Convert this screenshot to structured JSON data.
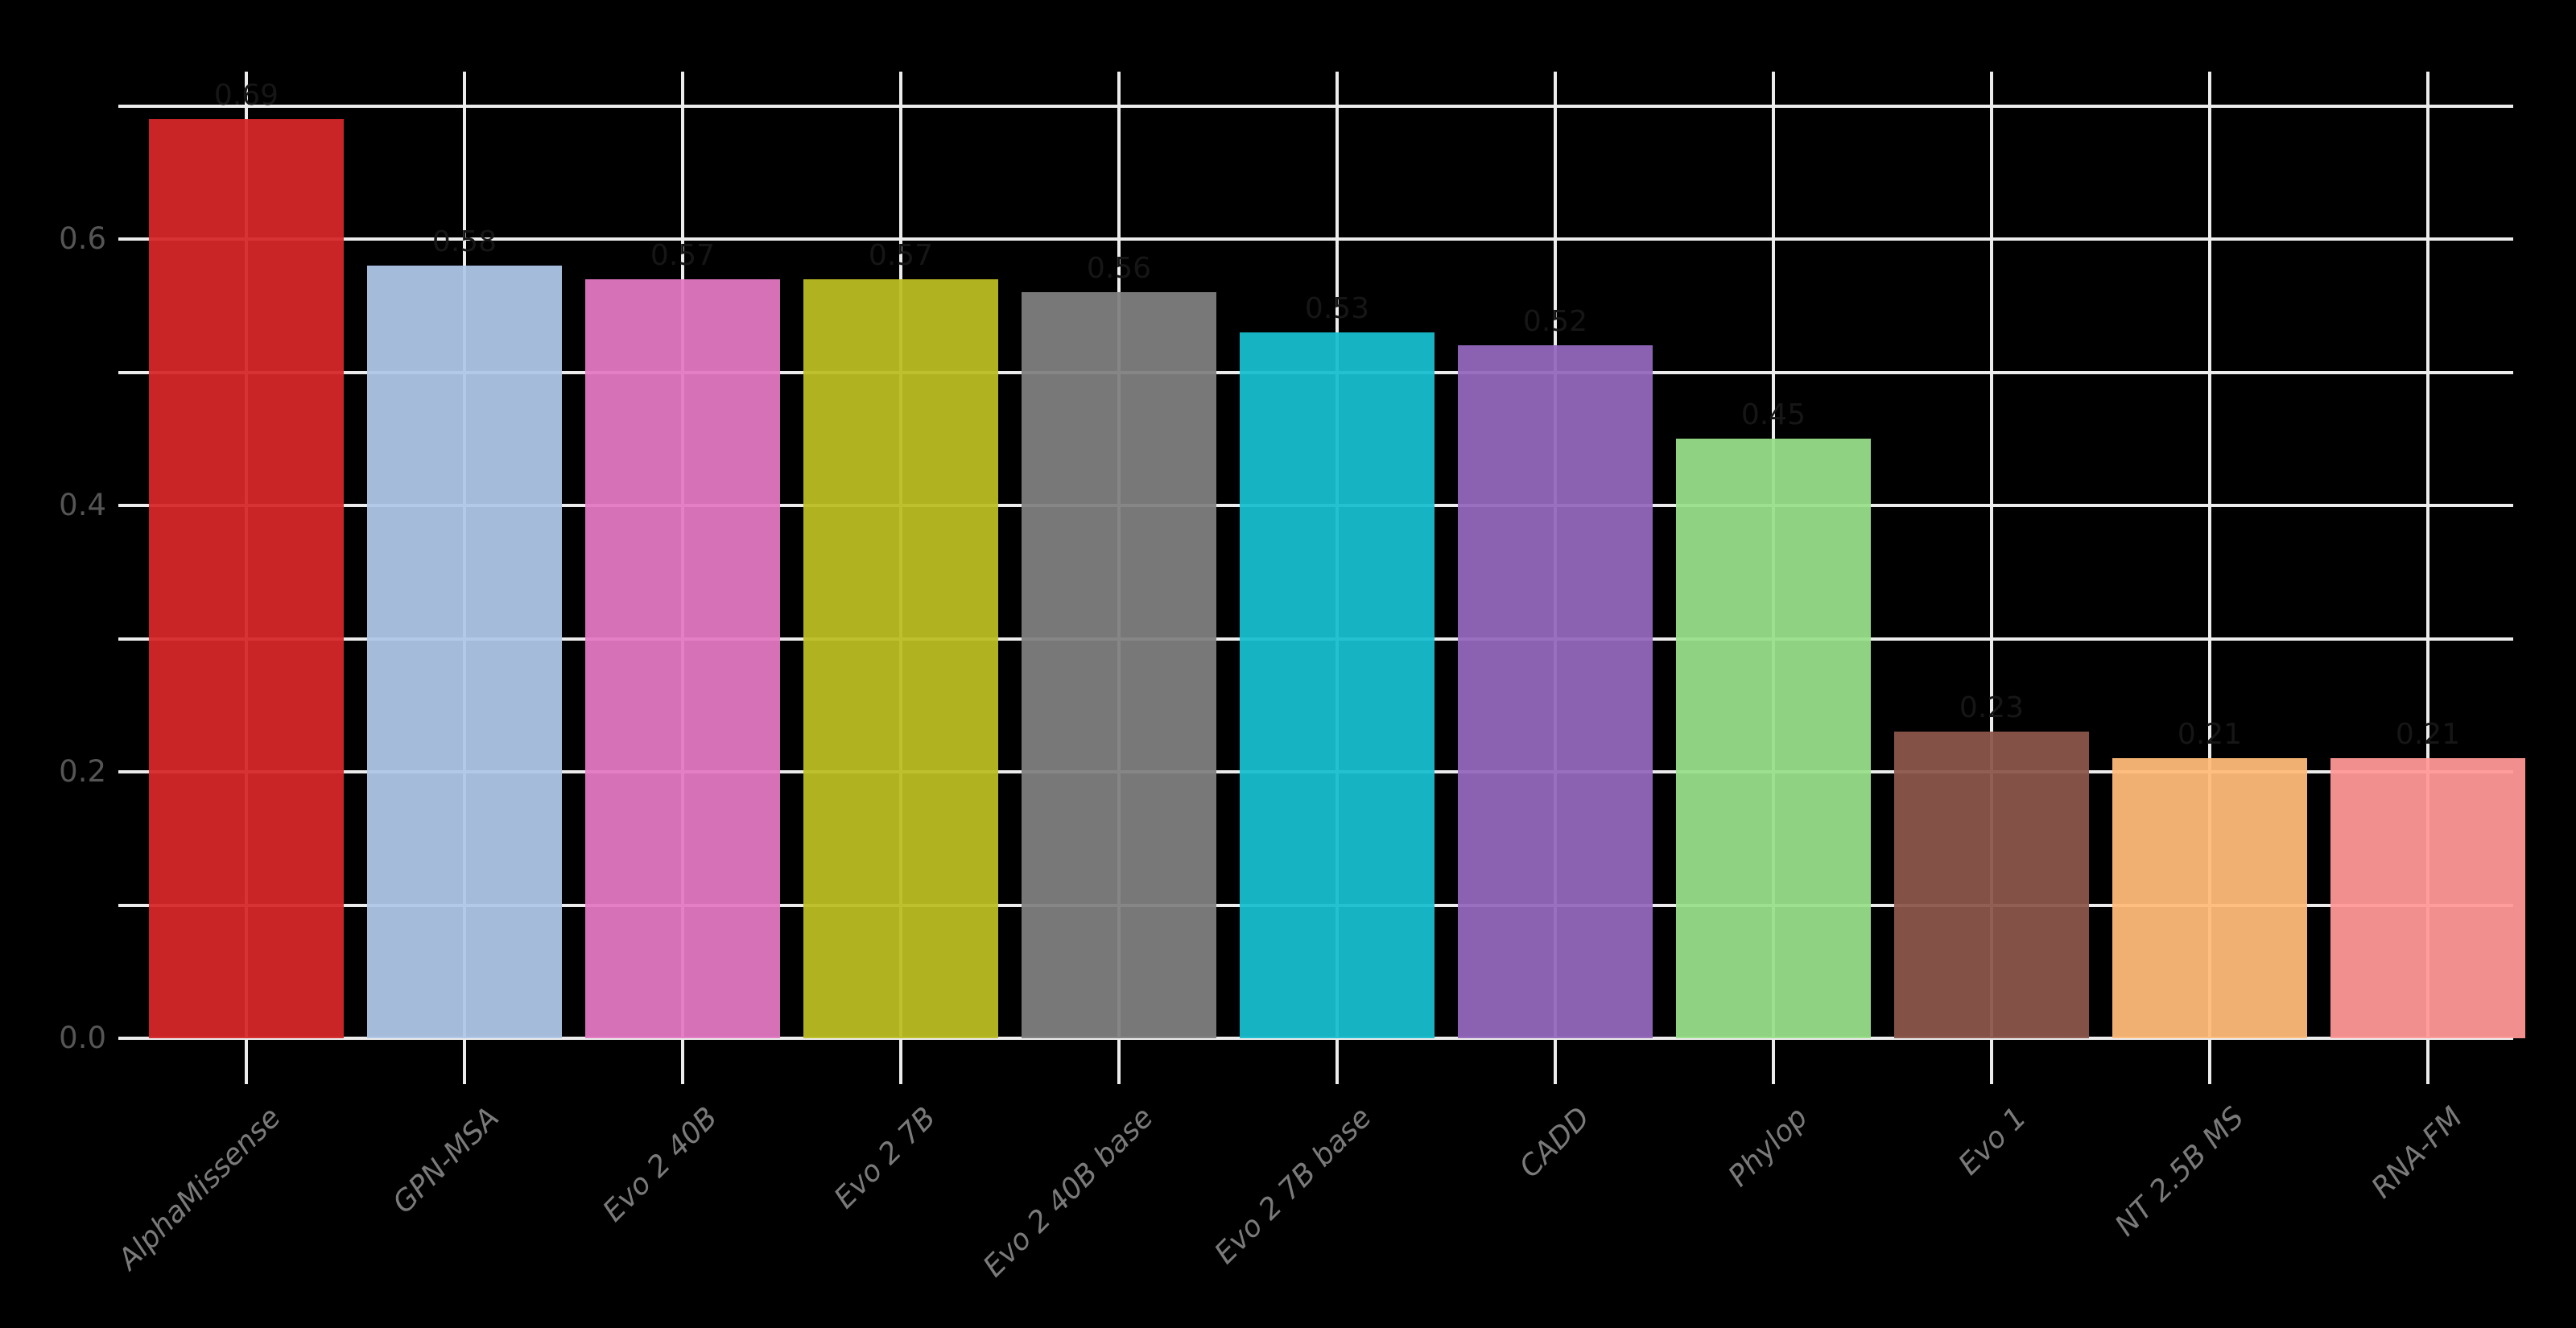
{
  "chart_data": {
    "type": "bar",
    "title": "",
    "xlabel": "",
    "ylabel": "",
    "categories": [
      "AlphaMissense",
      "GPN-MSA",
      "Evo 2 40B",
      "Evo 2 7B",
      "Evo 2 40B base",
      "Evo 2 7B base",
      "CADD",
      "Phylop",
      "Evo 1",
      "NT 2.5B MS",
      "RNA-FM"
    ],
    "values": [
      0.69,
      0.58,
      0.57,
      0.57,
      0.56,
      0.53,
      0.52,
      0.45,
      0.23,
      0.21,
      0.21
    ],
    "value_labels": [
      "0.69",
      "0.58",
      "0.57",
      "0.57",
      "0.56",
      "0.53",
      "0.52",
      "0.45",
      "0.23",
      "0.21",
      "0.21"
    ],
    "bar_colors": [
      "#d62728",
      "#aec7e8",
      "#e377c2",
      "#bcbd22",
      "#7f7f7f",
      "#17becf",
      "#9467bd",
      "#98df8a",
      "#8c564b",
      "#ffbb78",
      "#ff9896"
    ],
    "yticks": [
      {
        "value": 0.0,
        "label": "0.0"
      },
      {
        "value": 0.2,
        "label": "0.2"
      },
      {
        "value": 0.4,
        "label": "0.4"
      },
      {
        "value": 0.6,
        "label": "0.6"
      }
    ],
    "ylim": [
      0.0,
      0.72
    ],
    "gridlines_y": [
      0.0,
      0.1,
      0.2,
      0.3,
      0.4,
      0.5,
      0.6,
      0.7
    ],
    "grid": "on",
    "legend_position": "none",
    "colors": {
      "background": "#000000",
      "gridline": "#ececec",
      "y_tick_label": "#555555",
      "x_tick_label": "#7a7a7a",
      "value_label": "#161616"
    }
  }
}
